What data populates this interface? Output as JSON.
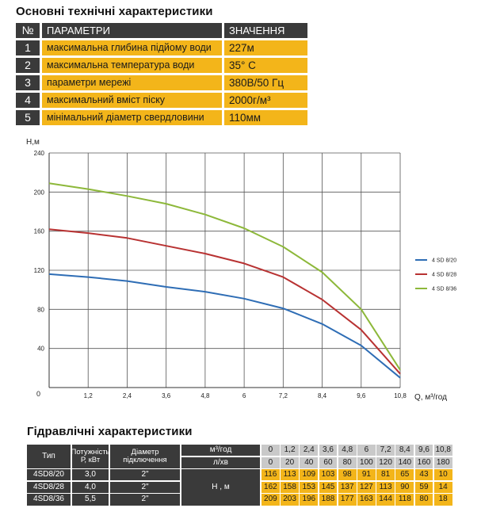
{
  "spec": {
    "title": "Основні технічні характеристики",
    "header": {
      "num": "№",
      "param": "ПАРАМЕТРИ",
      "value": "ЗНАЧЕННЯ"
    },
    "rows": [
      {
        "num": "1",
        "param": "максимальна глибина підйому води",
        "value": "227м"
      },
      {
        "num": "2",
        "param": "максимальна температура води",
        "value": "35° С"
      },
      {
        "num": "3",
        "param": "параметри мережі",
        "value": "380В/50 Гц"
      },
      {
        "num": "4",
        "param": "максимальний вміст піску",
        "value": "2000г/м³"
      },
      {
        "num": "5",
        "param": "мінімальний діаметр свердловини",
        "value": "110мм"
      }
    ]
  },
  "chart_data": {
    "type": "line",
    "ylabel": "Н,м",
    "xlabel": "Q,  м³/год",
    "origin_label": "0",
    "x": [
      0,
      1.2,
      2.4,
      3.6,
      4.8,
      6,
      7.2,
      8.4,
      9.6,
      10.8
    ],
    "x_tick_labels": [
      "1,2",
      "2,4",
      "3,6",
      "4,8",
      "6",
      "7,2",
      "8,4",
      "9,6",
      "10,8"
    ],
    "y_ticks": [
      40,
      80,
      120,
      160,
      200,
      240
    ],
    "xlim": [
      0,
      10.8
    ],
    "ylim": [
      0,
      240
    ],
    "grid": true,
    "legend_position": "right",
    "series": [
      {
        "name": "4 SD 8/20",
        "color": "#2e6db5",
        "values": [
          116,
          113,
          109,
          103,
          98,
          91,
          81,
          65,
          43,
          10
        ]
      },
      {
        "name": "4 SD 8/28",
        "color": "#b83232",
        "values": [
          162,
          158,
          153,
          145,
          137,
          127,
          113,
          90,
          59,
          14
        ]
      },
      {
        "name": "4 SD 8/36",
        "color": "#8db83a",
        "values": [
          209,
          203,
          196,
          188,
          177,
          163,
          144,
          118,
          80,
          18
        ]
      }
    ]
  },
  "hydro": {
    "title": "Гідравлічні характеристики",
    "col_type": "Тип",
    "col_power": "Потужність Р, кВт",
    "col_diam": "Діаметр підключення",
    "unit_q": "м³/год",
    "unit_l": "л/хв",
    "unit_h": "Н , м",
    "q_values": [
      "0",
      "1,2",
      "2,4",
      "3,6",
      "4,8",
      "6",
      "7,2",
      "8,4",
      "9,6",
      "10,8"
    ],
    "l_values": [
      "0",
      "20",
      "40",
      "60",
      "80",
      "100",
      "120",
      "140",
      "160",
      "180"
    ],
    "models": [
      {
        "type": "4SD8/20",
        "power": "3,0",
        "diam": "2\"",
        "h": [
          "116",
          "113",
          "109",
          "103",
          "98",
          "91",
          "81",
          "65",
          "43",
          "10"
        ]
      },
      {
        "type": "4SD8/28",
        "power": "4,0",
        "diam": "2\"",
        "h": [
          "162",
          "158",
          "153",
          "145",
          "137",
          "127",
          "113",
          "90",
          "59",
          "14"
        ]
      },
      {
        "type": "4SD8/36",
        "power": "5,5",
        "diam": "2\"",
        "h": [
          "209",
          "203",
          "196",
          "188",
          "177",
          "163",
          "144",
          "118",
          "80",
          "18"
        ]
      }
    ]
  }
}
